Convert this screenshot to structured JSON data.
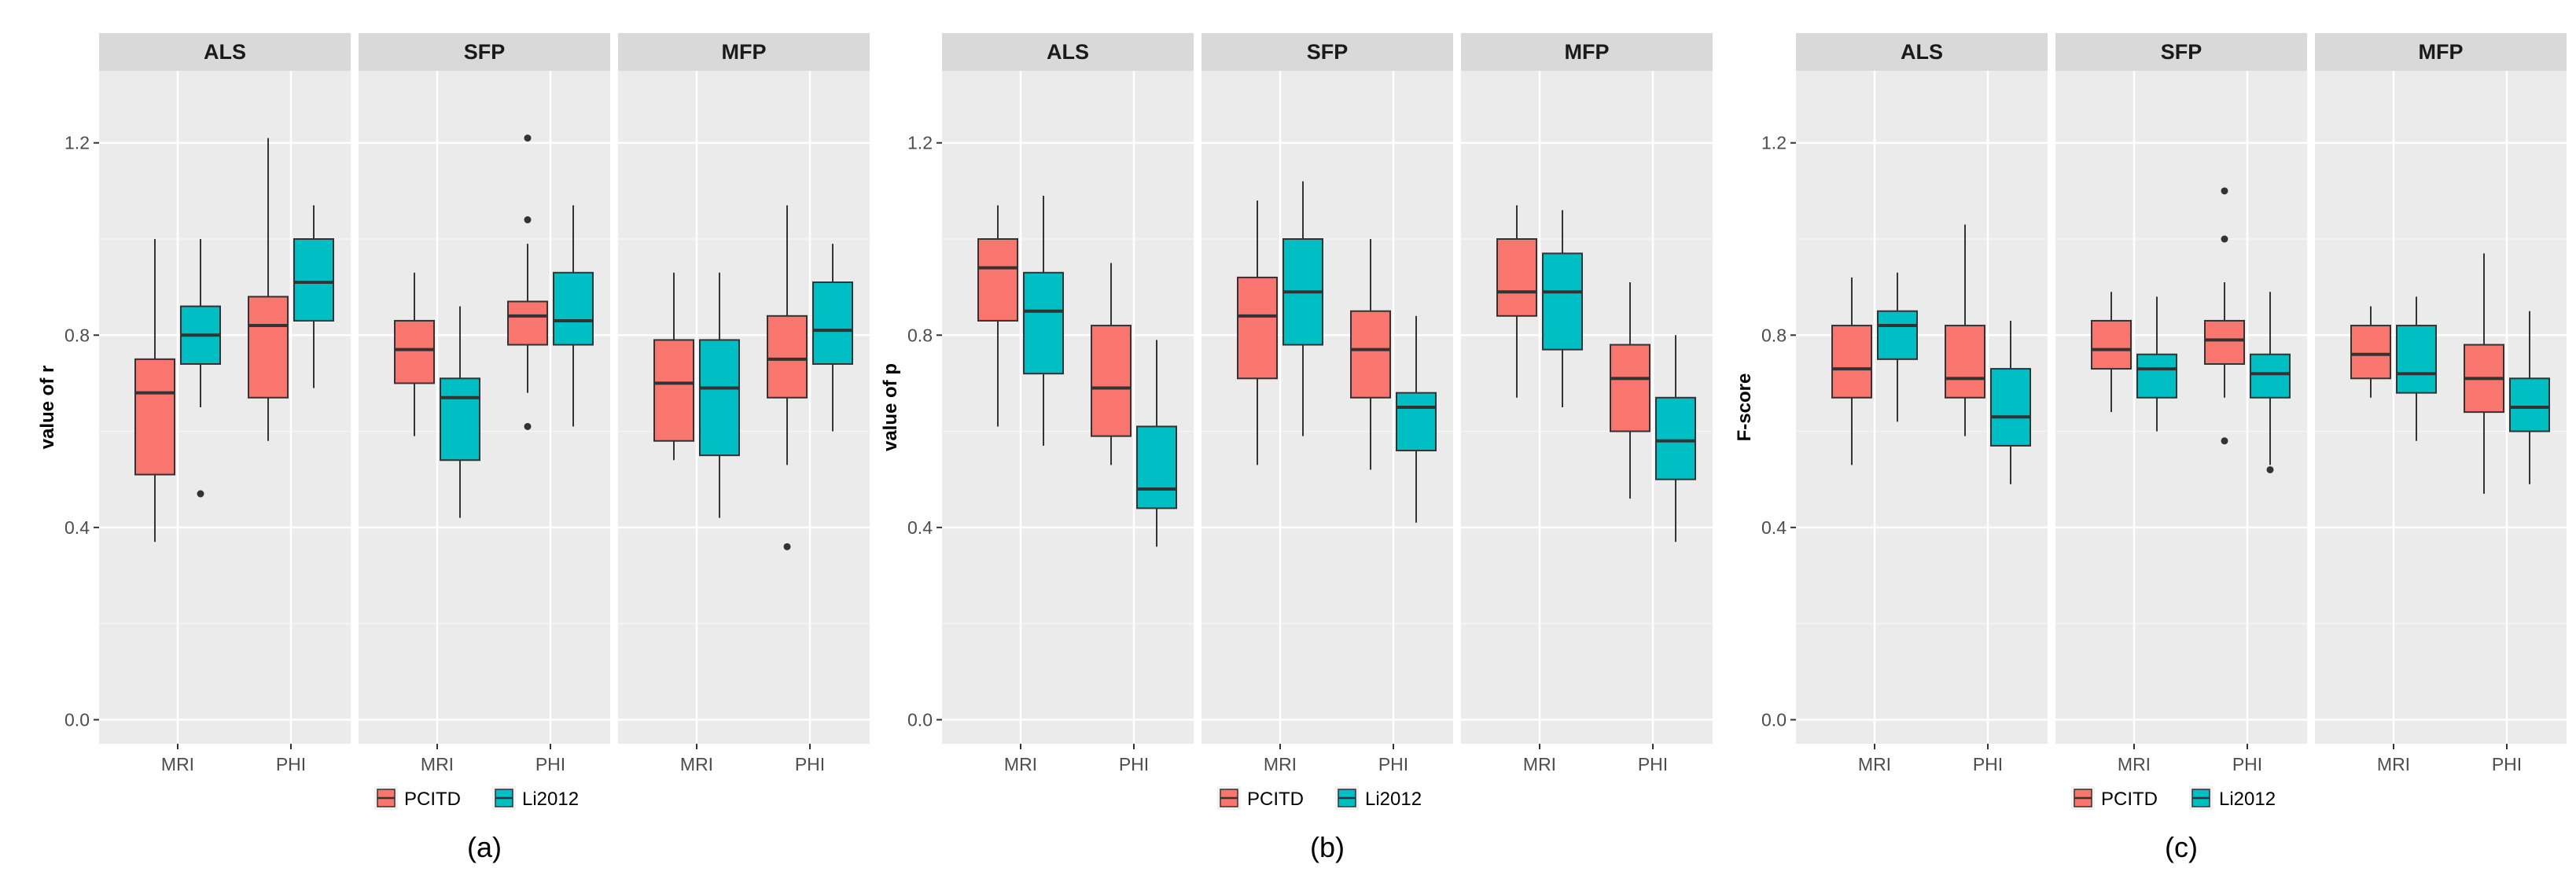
{
  "chart_data": [
    {
      "type": "boxplot",
      "caption": "(a)",
      "ylabel": "value of r",
      "ylim": [
        -0.05,
        1.35
      ],
      "yticks": [
        "0.0",
        "0.4",
        "0.8",
        "1.2"
      ],
      "categories": [
        "MRI",
        "PHI"
      ],
      "legend": [
        {
          "name": "PCITD",
          "color": "#F8766D"
        },
        {
          "name": "Li2012",
          "color": "#00BFC4"
        }
      ],
      "facets": [
        {
          "name": "ALS",
          "boxes": [
            {
              "category": "MRI",
              "series": "PCITD",
              "min": 0.37,
              "q1": 0.51,
              "median": 0.68,
              "q3": 0.75,
              "max": 1.0,
              "outliers": []
            },
            {
              "category": "MRI",
              "series": "Li2012",
              "min": 0.65,
              "q1": 0.74,
              "median": 0.8,
              "q3": 0.86,
              "max": 1.0,
              "outliers": [
                0.47
              ]
            },
            {
              "category": "PHI",
              "series": "PCITD",
              "min": 0.58,
              "q1": 0.67,
              "median": 0.82,
              "q3": 0.88,
              "max": 1.21,
              "outliers": []
            },
            {
              "category": "PHI",
              "series": "Li2012",
              "min": 0.69,
              "q1": 0.83,
              "median": 0.91,
              "q3": 1.0,
              "max": 1.07,
              "outliers": []
            }
          ]
        },
        {
          "name": "SFP",
          "boxes": [
            {
              "category": "MRI",
              "series": "PCITD",
              "min": 0.59,
              "q1": 0.7,
              "median": 0.77,
              "q3": 0.83,
              "max": 0.93,
              "outliers": []
            },
            {
              "category": "MRI",
              "series": "Li2012",
              "min": 0.42,
              "q1": 0.54,
              "median": 0.67,
              "q3": 0.71,
              "max": 0.86,
              "outliers": []
            },
            {
              "category": "PHI",
              "series": "PCITD",
              "min": 0.68,
              "q1": 0.78,
              "median": 0.84,
              "q3": 0.87,
              "max": 0.99,
              "outliers": [
                1.21,
                1.04,
                0.61
              ]
            },
            {
              "category": "PHI",
              "series": "Li2012",
              "min": 0.61,
              "q1": 0.78,
              "median": 0.83,
              "q3": 0.93,
              "max": 1.07,
              "outliers": []
            }
          ]
        },
        {
          "name": "MFP",
          "boxes": [
            {
              "category": "MRI",
              "series": "PCITD",
              "min": 0.54,
              "q1": 0.58,
              "median": 0.7,
              "q3": 0.79,
              "max": 0.93,
              "outliers": []
            },
            {
              "category": "MRI",
              "series": "Li2012",
              "min": 0.42,
              "q1": 0.55,
              "median": 0.69,
              "q3": 0.79,
              "max": 0.93,
              "outliers": []
            },
            {
              "category": "PHI",
              "series": "PCITD",
              "min": 0.53,
              "q1": 0.67,
              "median": 0.75,
              "q3": 0.84,
              "max": 1.07,
              "outliers": [
                0.36
              ]
            },
            {
              "category": "PHI",
              "series": "Li2012",
              "min": 0.6,
              "q1": 0.74,
              "median": 0.81,
              "q3": 0.91,
              "max": 0.99,
              "outliers": []
            }
          ]
        }
      ]
    },
    {
      "type": "boxplot",
      "caption": "(b)",
      "ylabel": "value of p",
      "ylim": [
        -0.05,
        1.35
      ],
      "yticks": [
        "0.0",
        "0.4",
        "0.8",
        "1.2"
      ],
      "categories": [
        "MRI",
        "PHI"
      ],
      "legend": [
        {
          "name": "PCITD",
          "color": "#F8766D"
        },
        {
          "name": "Li2012",
          "color": "#00BFC4"
        }
      ],
      "facets": [
        {
          "name": "ALS",
          "boxes": [
            {
              "category": "MRI",
              "series": "PCITD",
              "min": 0.61,
              "q1": 0.83,
              "median": 0.94,
              "q3": 1.0,
              "max": 1.07,
              "outliers": []
            },
            {
              "category": "MRI",
              "series": "Li2012",
              "min": 0.57,
              "q1": 0.72,
              "median": 0.85,
              "q3": 0.93,
              "max": 1.09,
              "outliers": []
            },
            {
              "category": "PHI",
              "series": "PCITD",
              "min": 0.53,
              "q1": 0.59,
              "median": 0.69,
              "q3": 0.82,
              "max": 0.95,
              "outliers": []
            },
            {
              "category": "PHI",
              "series": "Li2012",
              "min": 0.36,
              "q1": 0.44,
              "median": 0.48,
              "q3": 0.61,
              "max": 0.79,
              "outliers": []
            }
          ]
        },
        {
          "name": "SFP",
          "boxes": [
            {
              "category": "MRI",
              "series": "PCITD",
              "min": 0.53,
              "q1": 0.71,
              "median": 0.84,
              "q3": 0.92,
              "max": 1.08,
              "outliers": []
            },
            {
              "category": "MRI",
              "series": "Li2012",
              "min": 0.59,
              "q1": 0.78,
              "median": 0.89,
              "q3": 1.0,
              "max": 1.12,
              "outliers": []
            },
            {
              "category": "PHI",
              "series": "PCITD",
              "min": 0.52,
              "q1": 0.67,
              "median": 0.77,
              "q3": 0.85,
              "max": 1.0,
              "outliers": []
            },
            {
              "category": "PHI",
              "series": "Li2012",
              "min": 0.41,
              "q1": 0.56,
              "median": 0.65,
              "q3": 0.68,
              "max": 0.84,
              "outliers": []
            }
          ]
        },
        {
          "name": "MFP",
          "boxes": [
            {
              "category": "MRI",
              "series": "PCITD",
              "min": 0.67,
              "q1": 0.84,
              "median": 0.89,
              "q3": 1.0,
              "max": 1.07,
              "outliers": []
            },
            {
              "category": "MRI",
              "series": "Li2012",
              "min": 0.65,
              "q1": 0.77,
              "median": 0.89,
              "q3": 0.97,
              "max": 1.06,
              "outliers": []
            },
            {
              "category": "PHI",
              "series": "PCITD",
              "min": 0.46,
              "q1": 0.6,
              "median": 0.71,
              "q3": 0.78,
              "max": 0.91,
              "outliers": []
            },
            {
              "category": "PHI",
              "series": "Li2012",
              "min": 0.37,
              "q1": 0.5,
              "median": 0.58,
              "q3": 0.67,
              "max": 0.8,
              "outliers": []
            }
          ]
        }
      ]
    },
    {
      "type": "boxplot",
      "caption": "(c)",
      "ylabel": "F-score",
      "ylim": [
        -0.05,
        1.35
      ],
      "yticks": [
        "0.0",
        "0.4",
        "0.8",
        "1.2"
      ],
      "categories": [
        "MRI",
        "PHI"
      ],
      "legend": [
        {
          "name": "PCITD",
          "color": "#F8766D"
        },
        {
          "name": "Li2012",
          "color": "#00BFC4"
        }
      ],
      "facets": [
        {
          "name": "ALS",
          "boxes": [
            {
              "category": "MRI",
              "series": "PCITD",
              "min": 0.53,
              "q1": 0.67,
              "median": 0.73,
              "q3": 0.82,
              "max": 0.92,
              "outliers": []
            },
            {
              "category": "MRI",
              "series": "Li2012",
              "min": 0.62,
              "q1": 0.75,
              "median": 0.82,
              "q3": 0.85,
              "max": 0.93,
              "outliers": []
            },
            {
              "category": "PHI",
              "series": "PCITD",
              "min": 0.59,
              "q1": 0.67,
              "median": 0.71,
              "q3": 0.82,
              "max": 1.03,
              "outliers": []
            },
            {
              "category": "PHI",
              "series": "Li2012",
              "min": 0.49,
              "q1": 0.57,
              "median": 0.63,
              "q3": 0.73,
              "max": 0.83,
              "outliers": []
            }
          ]
        },
        {
          "name": "SFP",
          "boxes": [
            {
              "category": "MRI",
              "series": "PCITD",
              "min": 0.64,
              "q1": 0.73,
              "median": 0.77,
              "q3": 0.83,
              "max": 0.89,
              "outliers": []
            },
            {
              "category": "MRI",
              "series": "Li2012",
              "min": 0.6,
              "q1": 0.67,
              "median": 0.73,
              "q3": 0.76,
              "max": 0.88,
              "outliers": []
            },
            {
              "category": "PHI",
              "series": "PCITD",
              "min": 0.67,
              "q1": 0.74,
              "median": 0.79,
              "q3": 0.83,
              "max": 0.91,
              "outliers": [
                1.1,
                1.0,
                0.58
              ]
            },
            {
              "category": "PHI",
              "series": "Li2012",
              "min": 0.53,
              "q1": 0.67,
              "median": 0.72,
              "q3": 0.76,
              "max": 0.89,
              "outliers": [
                0.52
              ]
            }
          ]
        },
        {
          "name": "MFP",
          "boxes": [
            {
              "category": "MRI",
              "series": "PCITD",
              "min": 0.67,
              "q1": 0.71,
              "median": 0.76,
              "q3": 0.82,
              "max": 0.86,
              "outliers": []
            },
            {
              "category": "MRI",
              "series": "Li2012",
              "min": 0.58,
              "q1": 0.68,
              "median": 0.72,
              "q3": 0.82,
              "max": 0.88,
              "outliers": []
            },
            {
              "category": "PHI",
              "series": "PCITD",
              "min": 0.47,
              "q1": 0.64,
              "median": 0.71,
              "q3": 0.78,
              "max": 0.97,
              "outliers": []
            },
            {
              "category": "PHI",
              "series": "Li2012",
              "min": 0.49,
              "q1": 0.6,
              "median": 0.65,
              "q3": 0.71,
              "max": 0.85,
              "outliers": []
            }
          ]
        }
      ]
    }
  ]
}
